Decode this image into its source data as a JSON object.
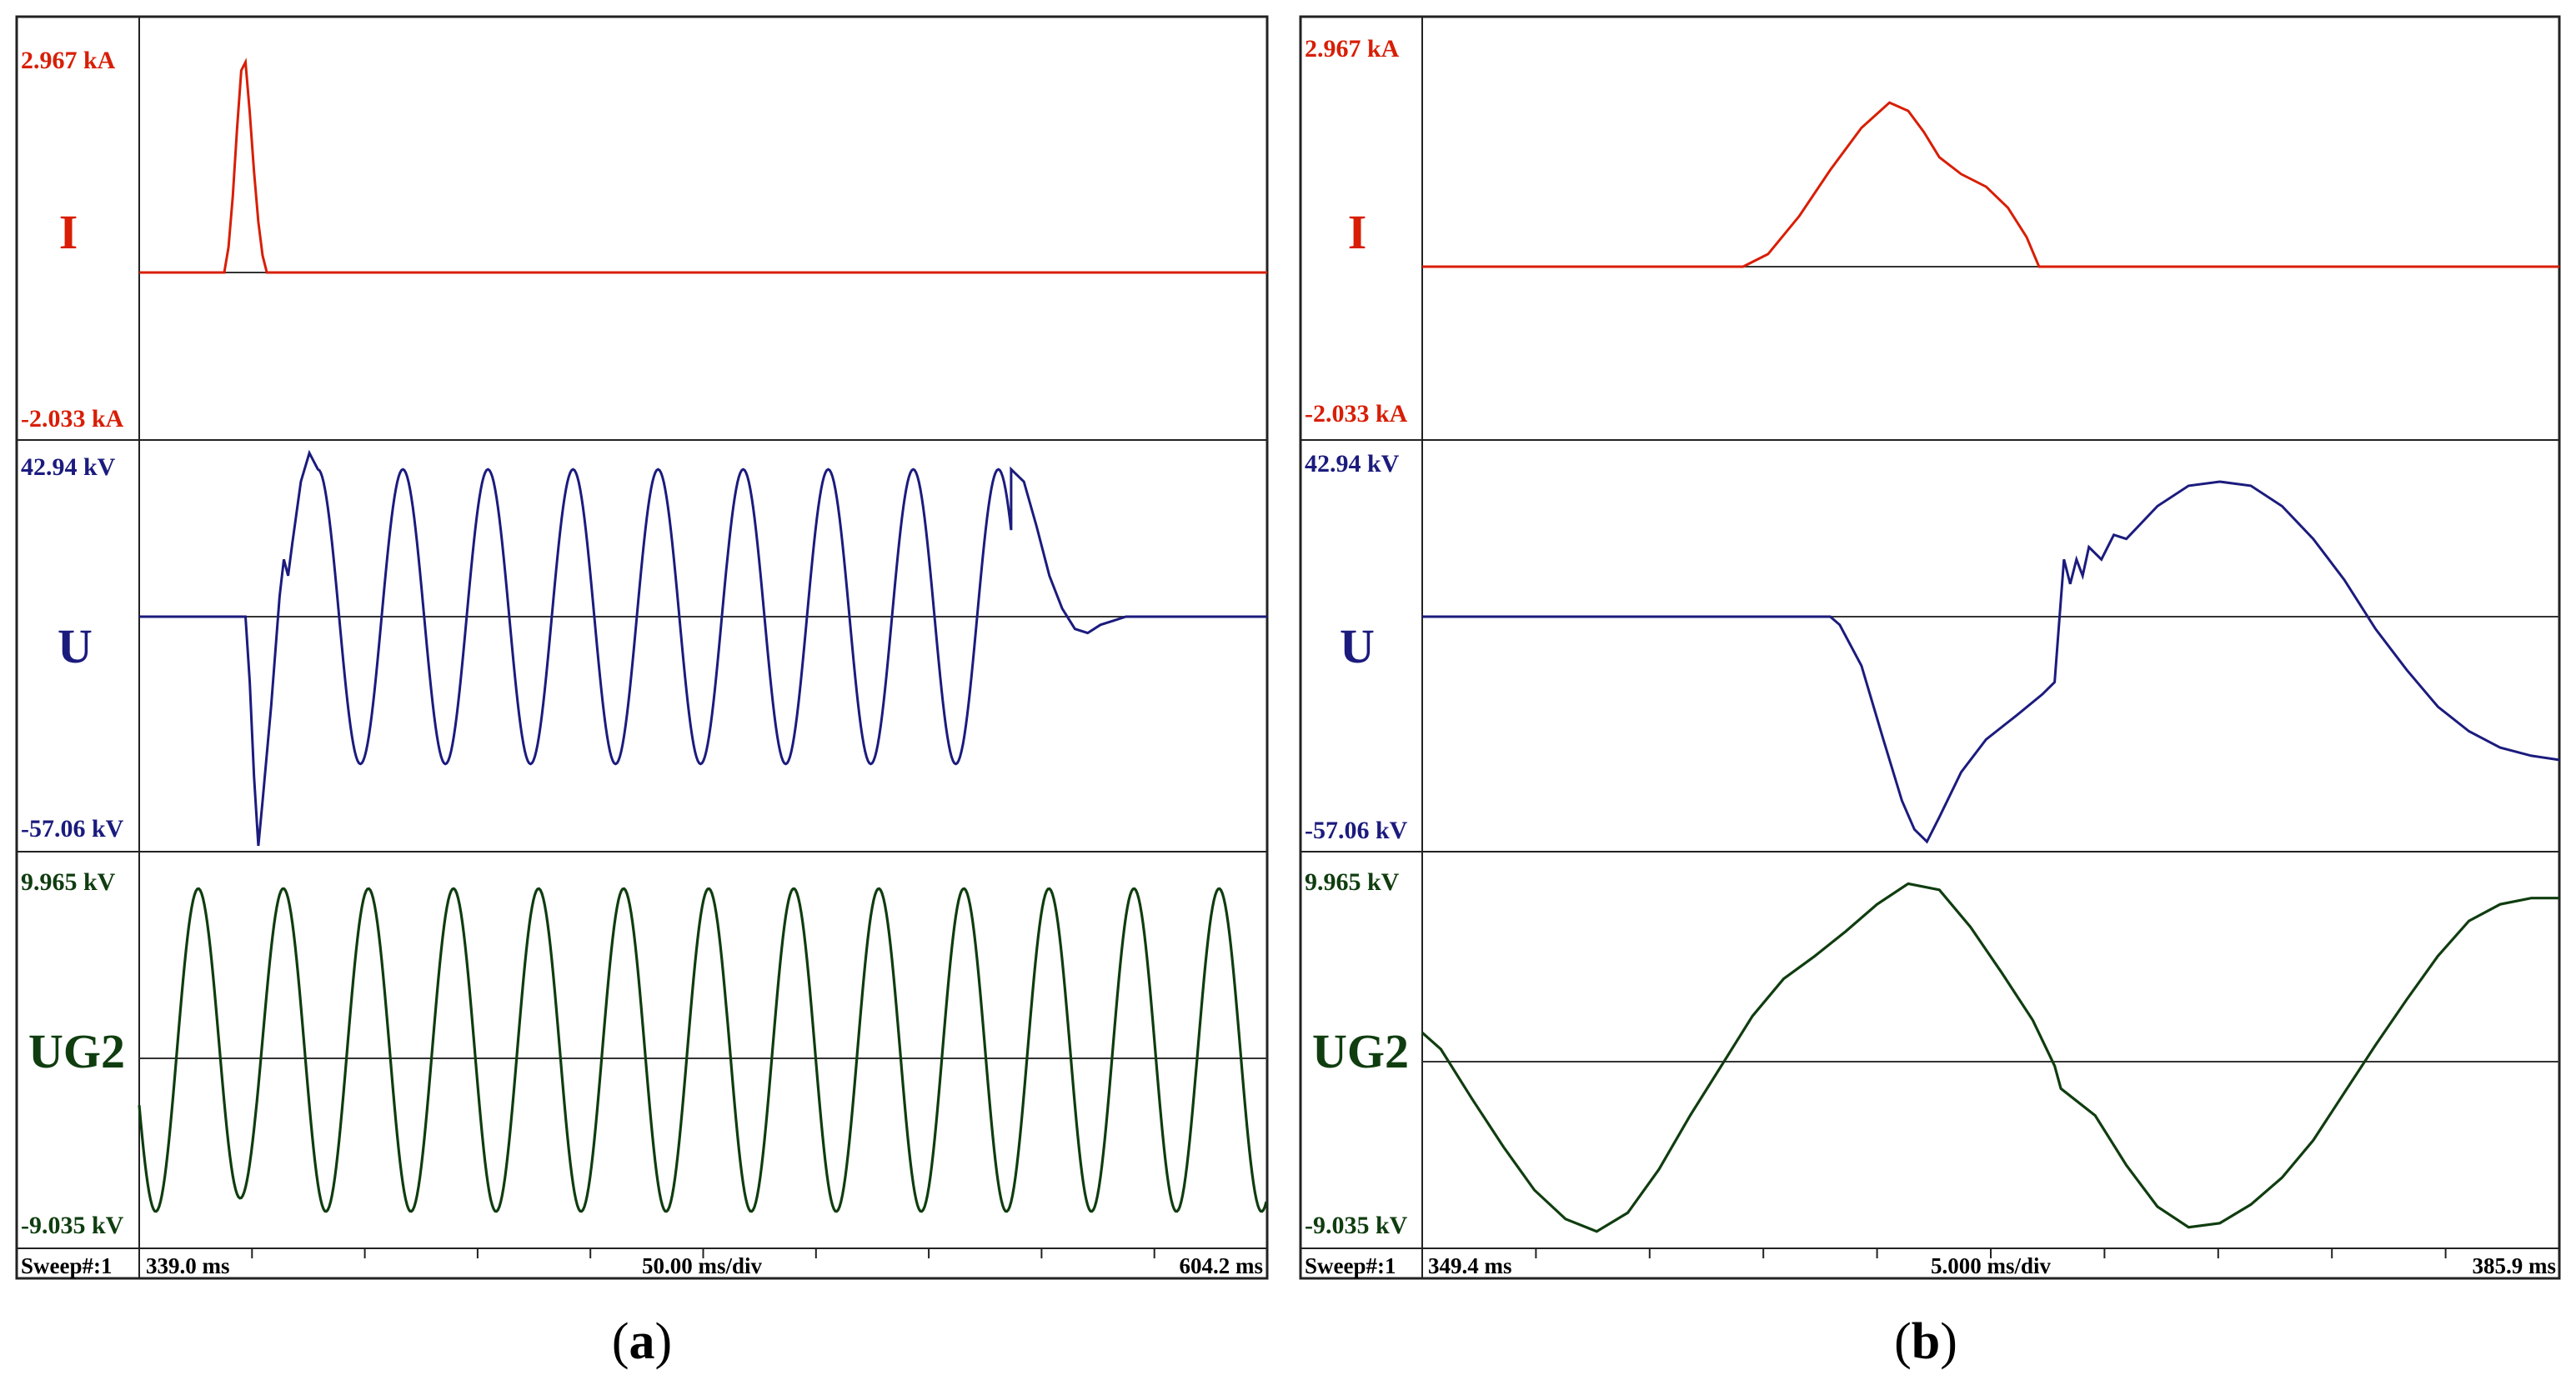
{
  "colors": {
    "current": "#d81e05",
    "voltage": "#1b1b7e",
    "ug2": "#0f3d0f",
    "frame": "#222222",
    "zero_line": "#333333"
  },
  "chart_data": [
    {
      "type": "line",
      "panel_label": "a",
      "sweep_label": "Sweep#:1",
      "time_start": "339.0 ms",
      "time_div": "50.00 ms/div",
      "time_end": "604.2 ms",
      "x_range_ms": [
        339.0,
        604.2
      ],
      "channels": [
        {
          "name": "I",
          "top": "2.967 kA",
          "bottom": "-2.033 kA",
          "range": [
            -2.033,
            2.967
          ],
          "unit": "kA",
          "color": "#d81e05",
          "points": [
            [
              339.0,
              0
            ],
            [
              359,
              0
            ],
            [
              360,
              0.3
            ],
            [
              361,
              0.9
            ],
            [
              362,
              1.7
            ],
            [
              363,
              2.4
            ],
            [
              364,
              2.5
            ],
            [
              365,
              1.9
            ],
            [
              366,
              1.2
            ],
            [
              367,
              0.6
            ],
            [
              368,
              0.2
            ],
            [
              369,
              0
            ],
            [
              604.2,
              0
            ]
          ]
        },
        {
          "name": "U",
          "top": "42.94 kV",
          "bottom": "-57.06 kV",
          "range": [
            -57.06,
            42.94
          ],
          "unit": "kV",
          "color": "#1b1b7e",
          "points": [
            [
              339,
              0
            ],
            [
              364,
              0
            ],
            [
              365,
              -16
            ],
            [
              366,
              -39
            ],
            [
              367,
              -56
            ],
            [
              368,
              -45
            ],
            [
              370,
              -22
            ],
            [
              372,
              5
            ],
            [
              373,
              14
            ],
            [
              374,
              10
            ],
            [
              375,
              18
            ],
            [
              377,
              33
            ],
            [
              379,
              40
            ],
            [
              381,
              36
            ]
          ],
          "sine": {
            "start": 381,
            "end": 544,
            "period": 20,
            "amplitude": 36,
            "offset": 0,
            "phase_deg": 90
          },
          "tail": [
            [
              544,
              36
            ],
            [
              547,
              33
            ],
            [
              550,
              22
            ],
            [
              553,
              10
            ],
            [
              556,
              2
            ],
            [
              559,
              -3
            ],
            [
              562,
              -4
            ],
            [
              565,
              -2
            ],
            [
              568,
              -1
            ],
            [
              571,
              0
            ],
            [
              604.2,
              0
            ]
          ]
        },
        {
          "name": "UG2",
          "top": "9.965 kV",
          "bottom": "-9.035 kV",
          "range": [
            -9.035,
            9.965
          ],
          "unit": "kV",
          "color": "#0f3d0f",
          "sine": {
            "start": 339,
            "end": 604.2,
            "period": 20,
            "amplitude": 7.8,
            "offset": 0.4,
            "phase_deg": 200
          },
          "bump": {
            "at": 364,
            "amount": 0.7
          }
        }
      ]
    },
    {
      "type": "line",
      "panel_label": "b",
      "sweep_label": "Sweep#:1",
      "time_start": "349.4 ms",
      "time_div": "5.000 ms/div",
      "time_end": "385.9 ms",
      "x_range_ms": [
        349.4,
        385.9
      ],
      "channels": [
        {
          "name": "I",
          "top": "2.967 kA",
          "bottom": "-2.033 kA",
          "range": [
            -2.033,
            2.967
          ],
          "unit": "kA",
          "color": "#d81e05",
          "points": [
            [
              349.4,
              0
            ],
            [
              359.7,
              0
            ],
            [
              360.5,
              0.15
            ],
            [
              361.5,
              0.6
            ],
            [
              362.5,
              1.15
            ],
            [
              363.5,
              1.65
            ],
            [
              364.4,
              1.95
            ],
            [
              365,
              1.85
            ],
            [
              365.5,
              1.6
            ],
            [
              366,
              1.3
            ],
            [
              366.7,
              1.1
            ],
            [
              367.5,
              0.95
            ],
            [
              368.2,
              0.7
            ],
            [
              368.8,
              0.35
            ],
            [
              369.2,
              0
            ],
            [
              385.9,
              0
            ]
          ]
        },
        {
          "name": "U",
          "top": "42.94 kV",
          "bottom": "-57.06 kV",
          "range": [
            -57.06,
            42.94
          ],
          "unit": "kV",
          "color": "#1b1b7e",
          "points": [
            [
              349.4,
              0
            ],
            [
              362.5,
              0
            ],
            [
              362.8,
              -2
            ],
            [
              363.5,
              -12
            ],
            [
              364.2,
              -30
            ],
            [
              364.8,
              -45
            ],
            [
              365.2,
              -52
            ],
            [
              365.6,
              -55
            ],
            [
              366,
              -49
            ],
            [
              366.7,
              -38
            ],
            [
              367.5,
              -30
            ],
            [
              368.5,
              -24
            ],
            [
              369.3,
              -19
            ],
            [
              369.7,
              -16
            ],
            [
              369.8,
              -6
            ],
            [
              370,
              14
            ],
            [
              370.2,
              8
            ],
            [
              370.4,
              14
            ],
            [
              370.6,
              10
            ],
            [
              370.8,
              17
            ],
            [
              371.2,
              14
            ],
            [
              371.6,
              20
            ],
            [
              372,
              19
            ],
            [
              373,
              27
            ],
            [
              374,
              32
            ],
            [
              375,
              33
            ],
            [
              376,
              32
            ],
            [
              377,
              27
            ],
            [
              378,
              19
            ],
            [
              379,
              9
            ],
            [
              380,
              -3
            ],
            [
              381,
              -13
            ],
            [
              382,
              -22
            ],
            [
              383,
              -28
            ],
            [
              384,
              -32
            ],
            [
              385,
              -34
            ],
            [
              385.9,
              -35
            ]
          ]
        },
        {
          "name": "UG2",
          "top": "9.965 kV",
          "bottom": "-9.035 kV",
          "range": [
            -9.035,
            9.965
          ],
          "unit": "kV",
          "color": "#0f3d0f",
          "points": [
            [
              349.4,
              1.4
            ],
            [
              350,
              0.6
            ],
            [
              351,
              -1.8
            ],
            [
              352,
              -4.1
            ],
            [
              353,
              -6.2
            ],
            [
              354,
              -7.6
            ],
            [
              355,
              -8.2
            ],
            [
              356,
              -7.3
            ],
            [
              357,
              -5.2
            ],
            [
              358,
              -2.6
            ],
            [
              359,
              -0.2
            ],
            [
              360,
              2.2
            ],
            [
              361,
              4.0
            ],
            [
              362,
              5.1
            ],
            [
              363,
              6.3
            ],
            [
              364,
              7.6
            ],
            [
              365,
              8.6
            ],
            [
              366,
              8.3
            ],
            [
              367,
              6.5
            ],
            [
              368,
              4.3
            ],
            [
              369,
              2.0
            ],
            [
              369.7,
              -0.2
            ],
            [
              369.9,
              -1.3
            ],
            [
              371,
              -2.6
            ],
            [
              372,
              -5.0
            ],
            [
              373,
              -7.0
            ],
            [
              374,
              -8.0
            ],
            [
              375,
              -7.8
            ],
            [
              376,
              -6.9
            ],
            [
              377,
              -5.6
            ],
            [
              378,
              -3.8
            ],
            [
              379,
              -1.5
            ],
            [
              380,
              0.8
            ],
            [
              381,
              3.0
            ],
            [
              382,
              5.1
            ],
            [
              383,
              6.8
            ],
            [
              384,
              7.6
            ],
            [
              385,
              7.9
            ],
            [
              385.9,
              7.9
            ]
          ]
        }
      ]
    }
  ]
}
